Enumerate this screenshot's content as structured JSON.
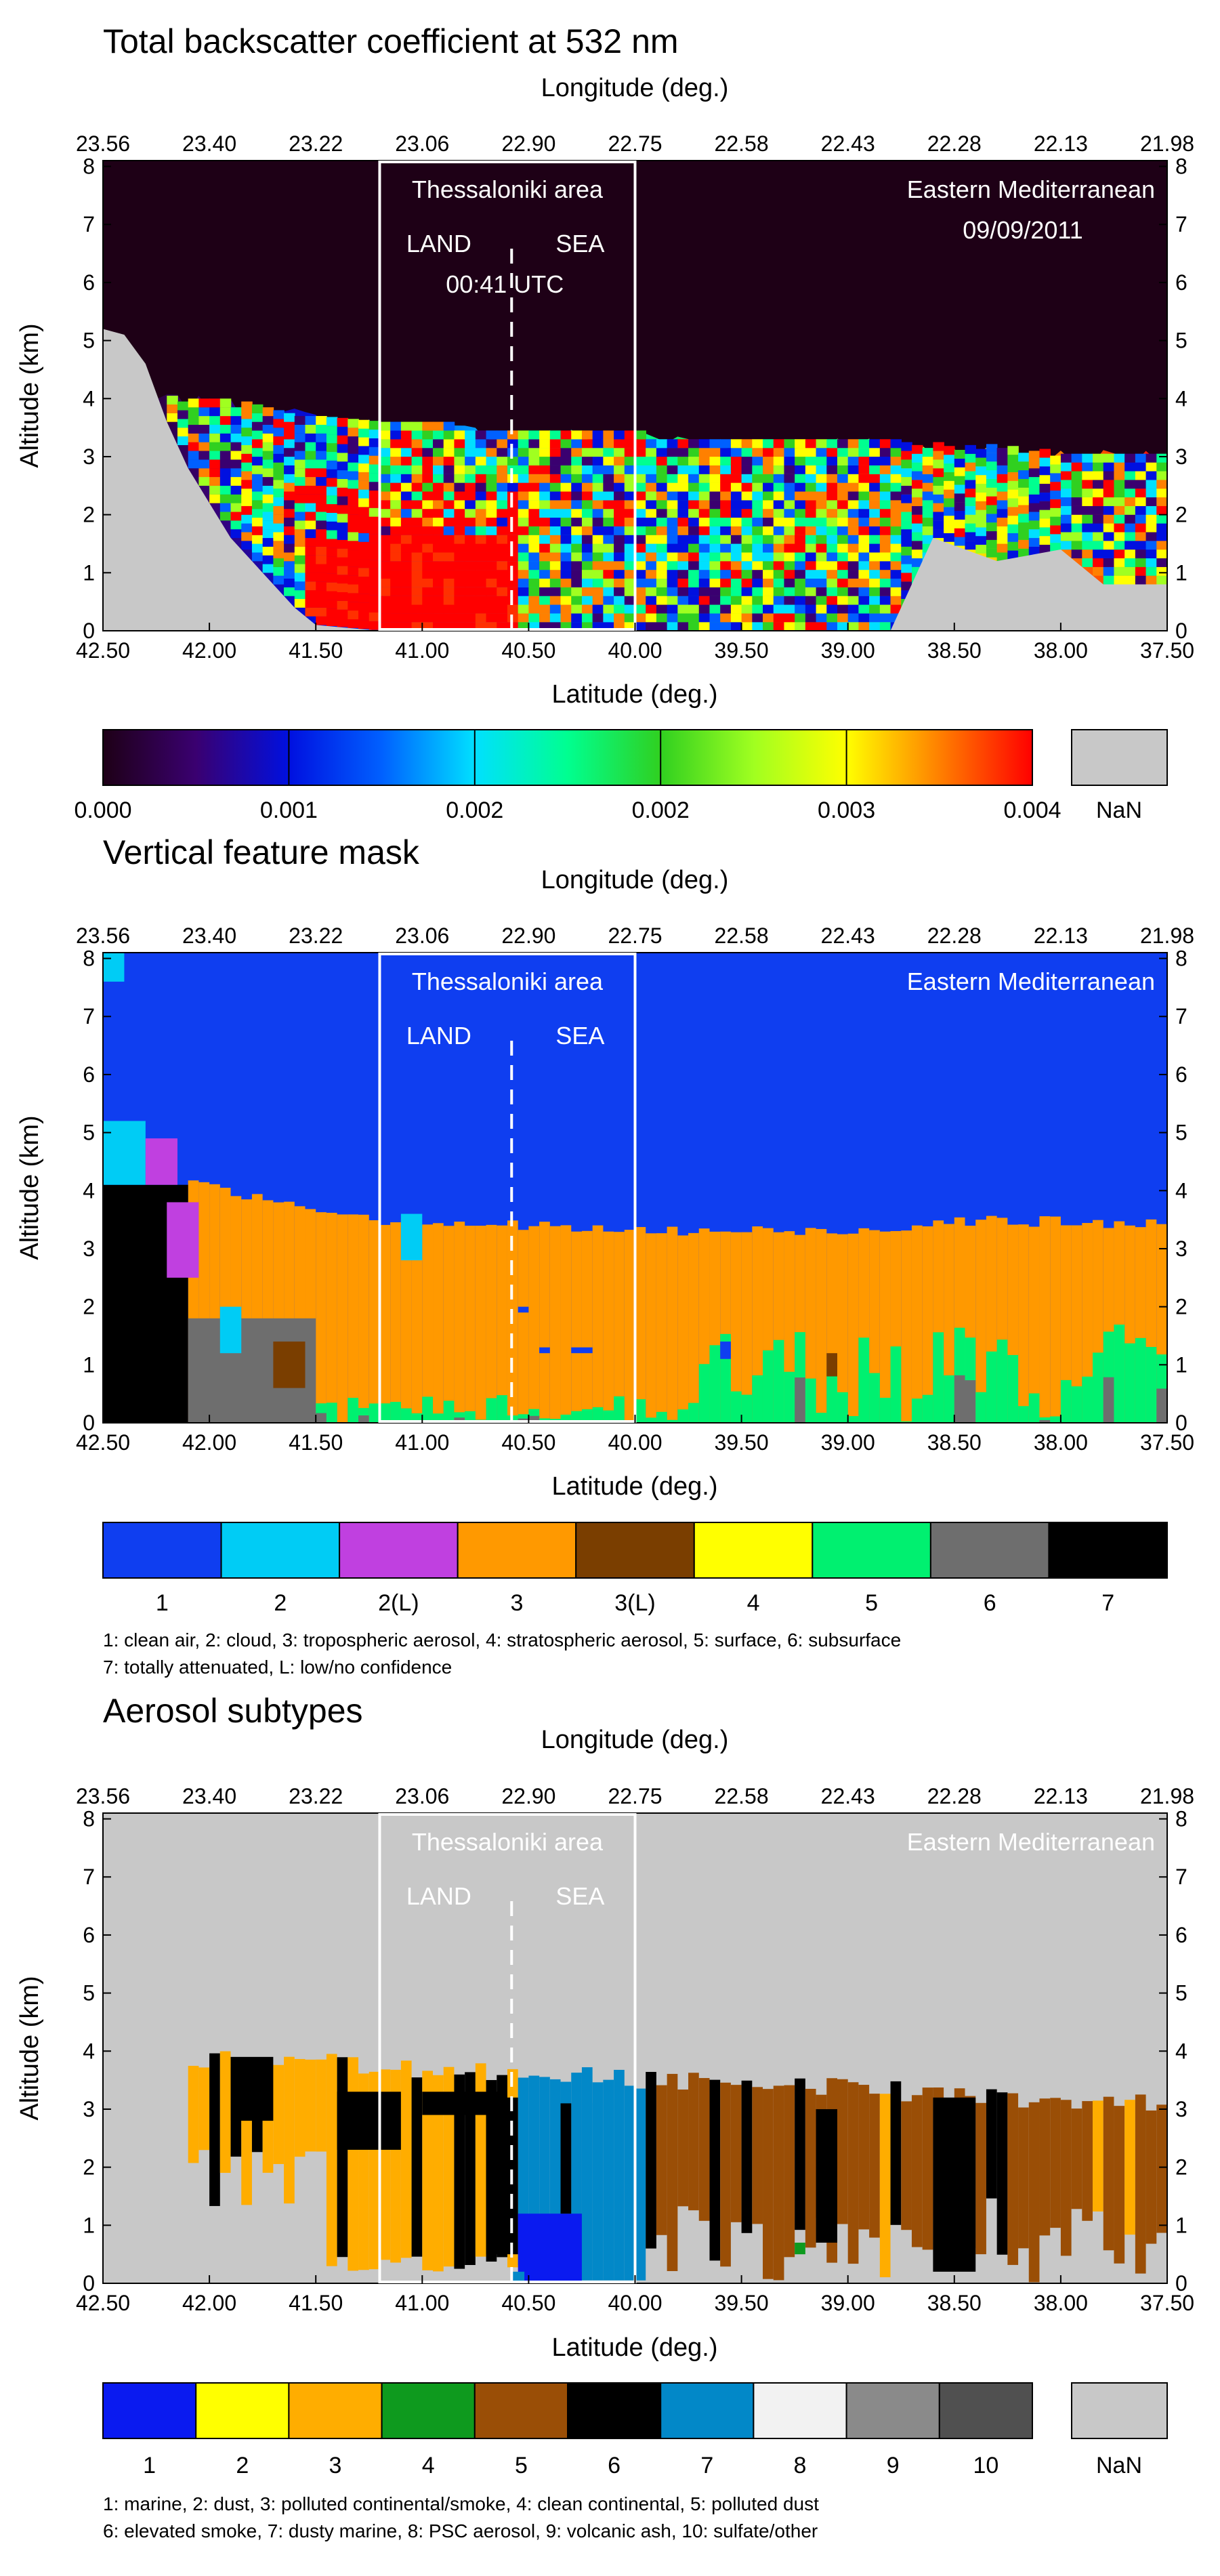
{
  "chart_data": [
    {
      "type": "heatmap",
      "title": "Total backscatter coefficient at 532 nm",
      "xlabel": "Latitude (deg.)",
      "x2label": "Longitude (deg.)",
      "ylabel": "Altitude (km)",
      "xlim": [
        42.5,
        37.5
      ],
      "ylim": [
        0,
        8.1
      ],
      "latitude_ticks": [
        "42.50",
        "42.00",
        "41.50",
        "41.00",
        "40.50",
        "40.00",
        "39.50",
        "39.00",
        "38.50",
        "38.00",
        "37.50"
      ],
      "longitude_ticks": [
        "23.56",
        "23.40",
        "23.22",
        "23.06",
        "22.90",
        "22.75",
        "22.58",
        "22.43",
        "22.28",
        "22.13",
        "21.98"
      ],
      "altitude_ticks": [
        "0",
        "1",
        "2",
        "3",
        "4",
        "5",
        "6",
        "7",
        "8"
      ],
      "annotations": {
        "area": "Thessaloniki area",
        "land": "LAND",
        "sea": "SEA",
        "time": "00:41 UTC",
        "region": "Eastern Mediterranean",
        "date": "09/09/2011"
      },
      "box_lat": [
        41.2,
        40.0
      ],
      "divider_lat": 40.58,
      "colorbar": {
        "tick_labels": [
          "0.000",
          "0.001",
          "0.002",
          "0.002",
          "0.003",
          "0.004"
        ],
        "nan_label": "NaN",
        "range": [
          0,
          0.004
        ],
        "colors": [
          "#1e0016",
          "#3a0070",
          "#0010e0",
          "#0060ff",
          "#00e0ff",
          "#00ff90",
          "#30d020",
          "#a0ff20",
          "#ffff00",
          "#ff8000",
          "#ff0000"
        ],
        "nan_color": "#c8c8c8"
      },
      "surface_altitude_km": [
        {
          "lat": 42.5,
          "alt": 5.2
        },
        {
          "lat": 42.4,
          "alt": 5.1
        },
        {
          "lat": 42.3,
          "alt": 4.6
        },
        {
          "lat": 42.2,
          "alt": 3.6
        },
        {
          "lat": 42.1,
          "alt": 2.8
        },
        {
          "lat": 42.0,
          "alt": 2.2
        },
        {
          "lat": 41.9,
          "alt": 1.6
        },
        {
          "lat": 41.8,
          "alt": 1.2
        },
        {
          "lat": 41.7,
          "alt": 0.8
        },
        {
          "lat": 41.6,
          "alt": 0.4
        },
        {
          "lat": 41.5,
          "alt": 0.1
        },
        {
          "lat": 41.2,
          "alt": 0.0
        },
        {
          "lat": 38.8,
          "alt": 0.0
        },
        {
          "lat": 38.6,
          "alt": 1.6
        },
        {
          "lat": 38.3,
          "alt": 1.2
        },
        {
          "lat": 38.0,
          "alt": 1.4
        },
        {
          "lat": 37.8,
          "alt": 0.8
        },
        {
          "lat": 37.5,
          "alt": 0.8
        }
      ],
      "aerosol_top_km": [
        {
          "lat": 42.3,
          "alt": 4.0
        },
        {
          "lat": 41.8,
          "alt": 3.8
        },
        {
          "lat": 41.2,
          "alt": 3.5
        },
        {
          "lat": 40.6,
          "alt": 3.4
        },
        {
          "lat": 40.0,
          "alt": 3.3
        },
        {
          "lat": 39.0,
          "alt": 3.2
        },
        {
          "lat": 38.0,
          "alt": 3.0
        },
        {
          "lat": 37.5,
          "alt": 3.0
        }
      ]
    },
    {
      "type": "heatmap",
      "title": "Vertical feature mask",
      "xlabel": "Latitude (deg.)",
      "x2label": "Longitude (deg.)",
      "ylabel": "Altitude (km)",
      "xlim": [
        42.5,
        37.5
      ],
      "ylim": [
        0,
        8.1
      ],
      "latitude_ticks": [
        "42.50",
        "42.00",
        "41.50",
        "41.00",
        "40.50",
        "40.00",
        "39.50",
        "39.00",
        "38.50",
        "38.00",
        "37.50"
      ],
      "longitude_ticks": [
        "23.56",
        "23.40",
        "23.22",
        "23.06",
        "22.90",
        "22.75",
        "22.58",
        "22.43",
        "22.28",
        "22.13",
        "21.98"
      ],
      "altitude_ticks": [
        "0",
        "1",
        "2",
        "3",
        "4",
        "5",
        "6",
        "7",
        "8"
      ],
      "annotations": {
        "area": "Thessaloniki area",
        "land": "LAND",
        "sea": "SEA",
        "region": "Eastern Mediterranean"
      },
      "box_lat": [
        41.2,
        40.0
      ],
      "divider_lat": 40.58,
      "classes": [
        {
          "label": "1",
          "color": "#0f3ef0"
        },
        {
          "label": "2",
          "color": "#00ccf5"
        },
        {
          "label": "2(L)",
          "color": "#c040e0"
        },
        {
          "label": "3",
          "color": "#ff9900"
        },
        {
          "label": "3(L)",
          "color": "#7a3e00"
        },
        {
          "label": "4",
          "color": "#ffff00"
        },
        {
          "label": "5",
          "color": "#00f070"
        },
        {
          "label": "6",
          "color": "#6e6e6e"
        },
        {
          "label": "7",
          "color": "#000000"
        }
      ],
      "description": [
        "1: clean air, 2: cloud, 3: tropospheric aerosol, 4: stratospheric aerosol, 5: surface, 6: subsurface",
        "7: totally attenuated, L: low/no confidence"
      ],
      "aerosol_top_km": [
        {
          "lat": 42.1,
          "alt": 4.1
        },
        {
          "lat": 41.5,
          "alt": 3.7
        },
        {
          "lat": 41.2,
          "alt": 3.5
        },
        {
          "lat": 40.6,
          "alt": 3.4
        },
        {
          "lat": 40.0,
          "alt": 3.3
        },
        {
          "lat": 39.0,
          "alt": 3.3
        },
        {
          "lat": 38.5,
          "alt": 3.5
        },
        {
          "lat": 37.5,
          "alt": 3.4
        }
      ]
    },
    {
      "type": "heatmap",
      "title": "Aerosol subtypes",
      "xlabel": "Latitude (deg.)",
      "x2label": "Longitude (deg.)",
      "ylabel": "Altitude (km)",
      "xlim": [
        42.5,
        37.5
      ],
      "ylim": [
        0,
        8.1
      ],
      "latitude_ticks": [
        "42.50",
        "42.00",
        "41.50",
        "41.00",
        "40.50",
        "40.00",
        "39.50",
        "39.00",
        "38.50",
        "38.00",
        "37.50"
      ],
      "longitude_ticks": [
        "23.56",
        "23.40",
        "23.22",
        "23.06",
        "22.90",
        "22.75",
        "22.58",
        "22.43",
        "22.28",
        "22.13",
        "21.98"
      ],
      "altitude_ticks": [
        "0",
        "1",
        "2",
        "3",
        "4",
        "5",
        "6",
        "7",
        "8"
      ],
      "annotations": {
        "area": "Thessaloniki area",
        "land": "LAND",
        "sea": "SEA",
        "region": "Eastern Mediterranean"
      },
      "box_lat": [
        41.2,
        40.0
      ],
      "divider_lat": 40.58,
      "classes": [
        {
          "label": "1",
          "color": "#0a1af0"
        },
        {
          "label": "2",
          "color": "#ffff00"
        },
        {
          "label": "3",
          "color": "#ffad00"
        },
        {
          "label": "4",
          "color": "#0e9a1e"
        },
        {
          "label": "5",
          "color": "#9a4e06"
        },
        {
          "label": "6",
          "color": "#000000"
        },
        {
          "label": "7",
          "color": "#0288c8"
        },
        {
          "label": "8",
          "color": "#f2f2f2"
        },
        {
          "label": "9",
          "color": "#8a8a8a"
        },
        {
          "label": "10",
          "color": "#505050"
        }
      ],
      "nan_label": "NaN",
      "nan_color": "#c8c8c8",
      "description": [
        "1: marine, 2: dust, 3: polluted continental/smoke, 4: clean continental, 5: polluted dust",
        "6: elevated smoke, 7: dusty marine, 8: PSC aerosol, 9: volcanic ash, 10: sulfate/other"
      ]
    }
  ]
}
